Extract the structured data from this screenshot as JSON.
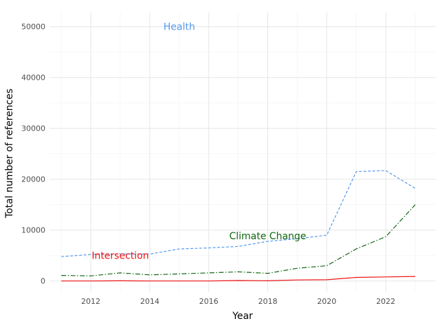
{
  "chart_data": {
    "type": "line",
    "xlabel": "Year",
    "ylabel": "Total number of references",
    "x": [
      2011,
      2012,
      2013,
      2014,
      2015,
      2016,
      2017,
      2018,
      2019,
      2020,
      2021,
      2022,
      2023
    ],
    "xlim": [
      2010.6,
      2023.7
    ],
    "ylim": [
      -2200,
      52800
    ],
    "x_ticks": [
      2012,
      2014,
      2016,
      2018,
      2020,
      2022
    ],
    "y_ticks": [
      0,
      10000,
      20000,
      30000,
      40000,
      50000
    ],
    "x_tick_labels": [
      "2012",
      "2014",
      "2016",
      "2018",
      "2020",
      "2022"
    ],
    "y_tick_labels": [
      "0",
      "10000",
      "20000",
      "30000",
      "40000",
      "50000"
    ],
    "grid": true,
    "legend": "none (direct labels)",
    "series": [
      {
        "name": "Health",
        "color": "#5599ee",
        "dash": "dashed",
        "values": [
          4800,
          5200,
          5300,
          5300,
          6300,
          6500,
          6800,
          7800,
          8300,
          9000,
          21500,
          21700,
          18200
        ],
        "label_at": [
          2015.0,
          50000
        ]
      },
      {
        "name": "Climate Change",
        "color": "#116611",
        "dash": "dashdot",
        "values": [
          1100,
          1000,
          1600,
          1200,
          1400,
          1600,
          1800,
          1500,
          2500,
          3000,
          6300,
          8700,
          15000
        ],
        "label_at": [
          2018.0,
          8900
        ]
      },
      {
        "name": "Intersection",
        "color": "#ee1111",
        "dash": "solid",
        "values": [
          0,
          0,
          50,
          0,
          0,
          0,
          100,
          50,
          200,
          250,
          700,
          800,
          900
        ],
        "label_at": [
          2013.0,
          5000
        ]
      }
    ]
  }
}
